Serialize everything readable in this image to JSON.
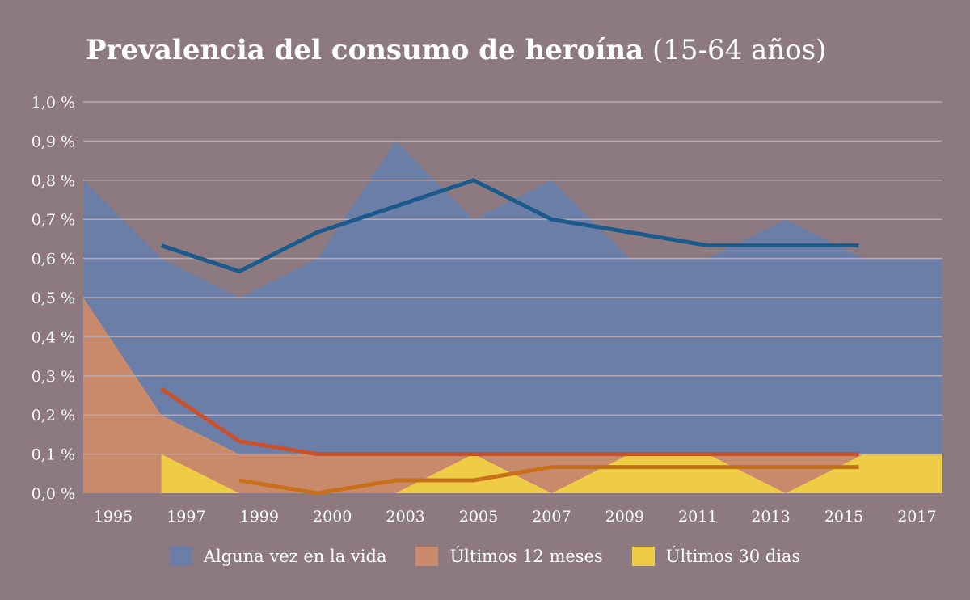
{
  "chart_data": {
    "type": "area",
    "title": "Prevalencia del consumo de heroína",
    "subtitle": "(15-64 años)",
    "categories": [
      "1995",
      "1997",
      "1999",
      "2000",
      "2003",
      "2005",
      "2007",
      "2009",
      "2011",
      "2013",
      "2015",
      "2017"
    ],
    "ylim": [
      0,
      1.0
    ],
    "yticks": [
      "0,0 %",
      "0,1 %",
      "0,2 %",
      "0,3 %",
      "0,4 %",
      "0,5 %",
      "0,6 %",
      "0,7 %",
      "0,8 %",
      "0,9 %",
      "1,0 %"
    ],
    "grid": true,
    "legend_position": "bottom",
    "area_series": [
      {
        "name": "Alguna vez en la vida",
        "color": "#6b7ea8",
        "values": [
          0.8,
          0.6,
          0.5,
          0.6,
          0.9,
          0.7,
          0.8,
          0.6,
          0.6,
          0.7,
          0.6,
          0.6
        ]
      },
      {
        "name": "Últimos 12 meses",
        "color": "#c98a6c",
        "values": [
          0.5,
          0.2,
          0.1,
          0.1,
          0.1,
          0.1,
          0.1,
          0.1,
          0.1,
          0.1,
          0.1,
          0.1
        ]
      },
      {
        "name": "Últimos 30 dias",
        "color": "#efcc45",
        "values": [
          null,
          0.1,
          0,
          0,
          0,
          0.1,
          0,
          0.1,
          0.1,
          0,
          0.1,
          0.1
        ]
      }
    ],
    "line_series": [
      {
        "color": "#1c5a8c",
        "values": [
          null,
          0.633,
          0.567,
          0.667,
          0.733,
          0.8,
          0.7,
          0.667,
          0.633,
          0.633,
          0.633,
          null
        ]
      },
      {
        "color": "#c9502a",
        "values": [
          null,
          0.267,
          0.133,
          0.1,
          0.1,
          0.1,
          0.1,
          0.1,
          0.1,
          0.1,
          0.1,
          null
        ]
      },
      {
        "color": "#c8701a",
        "values": [
          null,
          null,
          0.033,
          0,
          0.033,
          0.033,
          0.067,
          0.067,
          0.067,
          0.067,
          0.067,
          null
        ]
      }
    ]
  }
}
